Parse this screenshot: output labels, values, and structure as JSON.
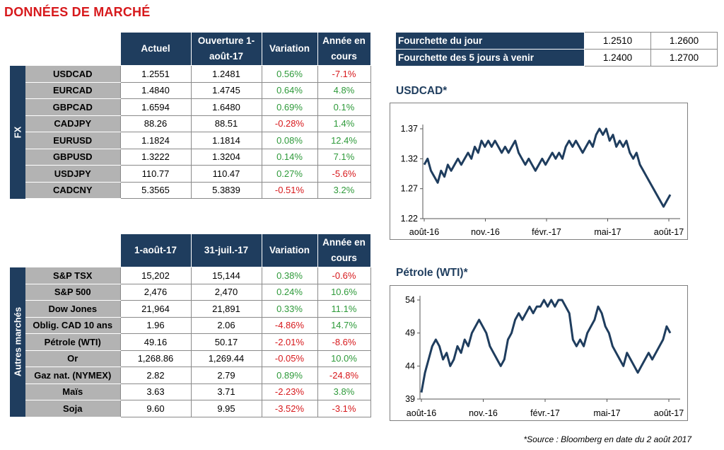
{
  "page": {
    "title": "DONNÉES DE MARCHÉ",
    "source": "*Source : Bloomberg en date du  2 août 2017"
  },
  "fx_table": {
    "side_label": "FX",
    "headers": [
      "Actuel",
      "Ouverture 1-août-17",
      "Variation",
      "Année en cours"
    ],
    "rows": [
      {
        "name": "USDCAD",
        "current": "1.2551",
        "open": "1.2481",
        "change": "0.56%",
        "ytd": "-7.1%"
      },
      {
        "name": "EURCAD",
        "current": "1.4840",
        "open": "1.4745",
        "change": "0.64%",
        "ytd": "4.8%"
      },
      {
        "name": "GBPCAD",
        "current": "1.6594",
        "open": "1.6480",
        "change": "0.69%",
        "ytd": "0.1%"
      },
      {
        "name": "CADJPY",
        "current": "88.26",
        "open": "88.51",
        "change": "-0.28%",
        "ytd": "1.4%"
      },
      {
        "name": "EURUSD",
        "current": "1.1824",
        "open": "1.1814",
        "change": "0.08%",
        "ytd": "12.4%"
      },
      {
        "name": "GBPUSD",
        "current": "1.3222",
        "open": "1.3204",
        "change": "0.14%",
        "ytd": "7.1%"
      },
      {
        "name": "USDJPY",
        "current": "110.77",
        "open": "110.47",
        "change": "0.27%",
        "ytd": "-5.6%"
      },
      {
        "name": "CADCNY",
        "current": "5.3565",
        "open": "5.3839",
        "change": "-0.51%",
        "ytd": "3.2%"
      }
    ]
  },
  "markets_table": {
    "side_label": "Autres marchés",
    "headers": [
      "1-août-17",
      "31-juil.-17",
      "Variation",
      "Année en cours"
    ],
    "rows": [
      {
        "name": "S&P TSX",
        "current": "15,202",
        "open": "15,144",
        "change": "0.38%",
        "ytd": "-0.6%"
      },
      {
        "name": "S&P 500",
        "current": "2,476",
        "open": "2,470",
        "change": "0.24%",
        "ytd": "10.6%"
      },
      {
        "name": "Dow Jones",
        "current": "21,964",
        "open": "21,891",
        "change": "0.33%",
        "ytd": "11.1%"
      },
      {
        "name": "Oblig. CAD 10 ans",
        "current": "1.96",
        "open": "2.06",
        "change": "-4.86%",
        "ytd": "14.7%"
      },
      {
        "name": "Pétrole (WTI)",
        "current": "49.16",
        "open": "50.17",
        "change": "-2.01%",
        "ytd": "-8.6%"
      },
      {
        "name": "Or",
        "current": "1,268.86",
        "open": "1,269.44",
        "change": "-0.05%",
        "ytd": "10.0%"
      },
      {
        "name": "Gaz nat. (NYMEX)",
        "current": "2.82",
        "open": "2.79",
        "change": "0.89%",
        "ytd": "-24.8%"
      },
      {
        "name": "Maïs",
        "current": "3.63",
        "open": "3.71",
        "change": "-2.23%",
        "ytd": "3.8%"
      },
      {
        "name": "Soja",
        "current": "9.60",
        "open": "9.95",
        "change": "-3.52%",
        "ytd": "-3.1%"
      }
    ]
  },
  "range_table": {
    "rows": [
      {
        "label": "Fourchette du jour",
        "low": "1.2510",
        "high": "1.2600"
      },
      {
        "label": "Fourchette des 5 jours à venir",
        "low": "1.2400",
        "high": "1.2700"
      }
    ]
  },
  "colors": {
    "navy": "#1f3d5e",
    "grey": "#b3b3b3",
    "positive": "#2e9a3a",
    "negative": "#d7191c",
    "line": "#1f3d5e"
  },
  "chart_data": [
    {
      "type": "line",
      "title": "USDCAD*",
      "xlabel": "",
      "ylabel": "",
      "x_ticks": [
        "août-16",
        "nov.-16",
        "févr.-17",
        "mai-17",
        "août-17"
      ],
      "y_ticks": [
        "1.22",
        "1.27",
        "1.32",
        "1.37"
      ],
      "ylim": [
        1.22,
        1.37
      ],
      "grid": false,
      "series": [
        {
          "values": [
            1.31,
            1.32,
            1.3,
            1.29,
            1.28,
            1.3,
            1.29,
            1.31,
            1.3,
            1.31,
            1.32,
            1.31,
            1.32,
            1.33,
            1.32,
            1.34,
            1.33,
            1.35,
            1.34,
            1.35,
            1.34,
            1.35,
            1.34,
            1.33,
            1.34,
            1.33,
            1.34,
            1.35,
            1.33,
            1.32,
            1.31,
            1.32,
            1.31,
            1.3,
            1.31,
            1.32,
            1.31,
            1.32,
            1.33,
            1.32,
            1.33,
            1.32,
            1.34,
            1.35,
            1.34,
            1.35,
            1.34,
            1.33,
            1.34,
            1.35,
            1.34,
            1.36,
            1.37,
            1.36,
            1.37,
            1.35,
            1.36,
            1.34,
            1.35,
            1.34,
            1.35,
            1.33,
            1.32,
            1.33,
            1.31,
            1.3,
            1.29,
            1.28,
            1.27,
            1.26,
            1.25,
            1.24,
            1.25,
            1.26
          ]
        }
      ]
    },
    {
      "type": "line",
      "title": "Pétrole (WTI)*",
      "xlabel": "",
      "ylabel": "",
      "x_ticks": [
        "août-16",
        "nov.-16",
        "févr.-17",
        "mai-17",
        "août-17"
      ],
      "y_ticks": [
        "39",
        "44",
        "49",
        "54"
      ],
      "ylim": [
        39,
        54
      ],
      "grid": false,
      "series": [
        {
          "values": [
            40,
            43,
            45,
            47,
            48,
            47,
            45,
            46,
            44,
            45,
            47,
            46,
            48,
            47,
            49,
            50,
            51,
            50,
            49,
            47,
            46,
            45,
            44,
            45,
            48,
            49,
            51,
            52,
            51,
            52,
            53,
            52,
            53,
            53,
            54,
            53,
            54,
            53,
            54,
            54,
            53,
            52,
            48,
            47,
            48,
            47,
            49,
            50,
            51,
            53,
            52,
            50,
            49,
            47,
            46,
            45,
            44,
            46,
            45,
            44,
            43,
            44,
            45,
            46,
            45,
            46,
            47,
            48,
            50,
            49
          ]
        }
      ]
    }
  ]
}
